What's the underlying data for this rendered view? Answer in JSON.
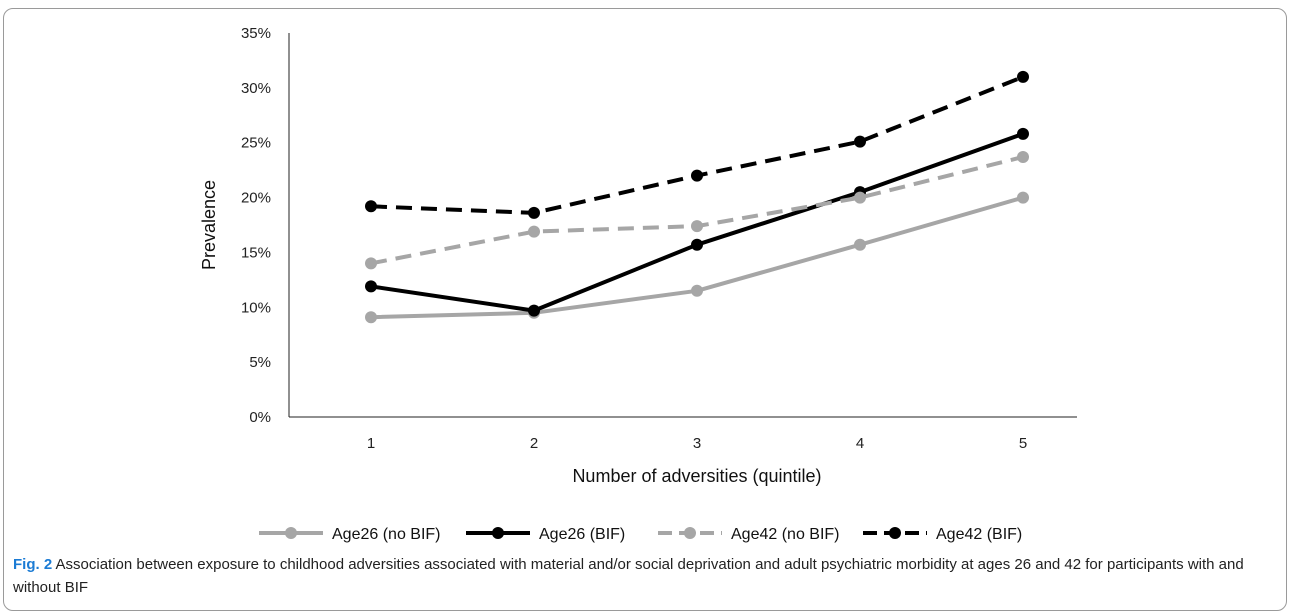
{
  "chart_data": {
    "type": "line",
    "xlabel": "Number of adversities (quintile)",
    "ylabel": "Prevalence",
    "categories": [
      "1",
      "2",
      "3",
      "4",
      "5"
    ],
    "ylim": [
      0,
      35
    ],
    "y_ticks": [
      "0%",
      "5%",
      "10%",
      "15%",
      "20%",
      "25%",
      "30%",
      "35%"
    ],
    "grid": false,
    "legend_position": "bottom",
    "series": [
      {
        "name": "Age26 (no BIF)",
        "values": [
          9.1,
          9.5,
          11.5,
          15.7,
          20.0
        ],
        "color": "#a6a6a6",
        "dash": "solid"
      },
      {
        "name": "Age26 (BIF)",
        "values": [
          11.9,
          9.7,
          15.7,
          20.5,
          25.8
        ],
        "color": "#000000",
        "dash": "solid"
      },
      {
        "name": "Age42 (no BIF)",
        "values": [
          14.0,
          16.9,
          17.4,
          20.0,
          23.7
        ],
        "color": "#a6a6a6",
        "dash": "dashed"
      },
      {
        "name": "Age42 (BIF)",
        "values": [
          19.2,
          18.6,
          22.0,
          25.1,
          31.0
        ],
        "color": "#000000",
        "dash": "dashed"
      }
    ]
  },
  "caption": {
    "label": "Fig. 2",
    "text": " Association between exposure to childhood adversities associated with material and/or social deprivation and adult psychiatric morbidity at ages 26 and 42 for participants with and without BIF"
  }
}
